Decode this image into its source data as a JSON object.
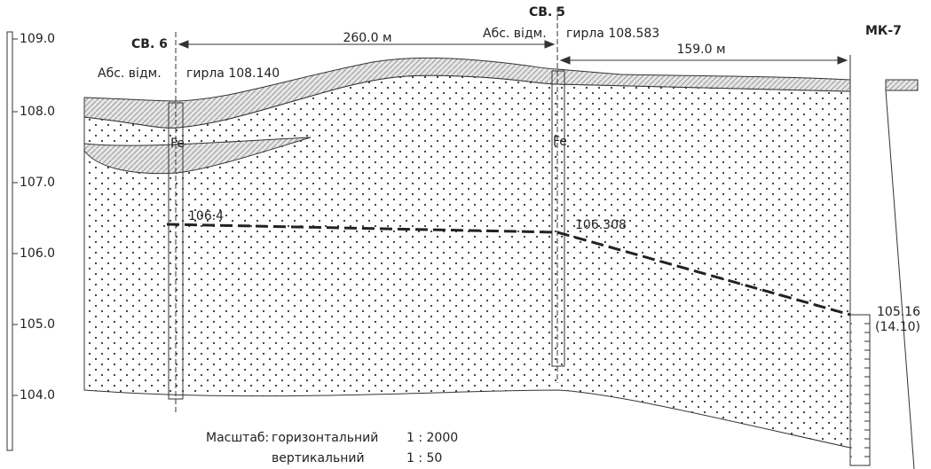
{
  "scale": {
    "ticks": [
      "109.0",
      "108.0",
      "107.0",
      "106.0",
      "105.0",
      "104.0"
    ]
  },
  "boreholes": [
    {
      "name": "СВ. 6",
      "elevation_label": "Абс. відм.",
      "collar": "гирла 108.140",
      "marker": "Fe",
      "water_level": "106.4"
    },
    {
      "name": "СВ. 5",
      "elevation_label": "Абс. відм.",
      "collar": "гирла 108.583",
      "marker": "Fe",
      "water_level": "106.308"
    },
    {
      "name": "МК-7",
      "water_level": "105.16",
      "depth": "(14.10)"
    }
  ],
  "distances": [
    "260.0 м",
    "159.0 м"
  ],
  "legend": {
    "title": "Масштаб:",
    "rows": [
      {
        "label": "горизонтальний",
        "value": "1 : 2000"
      },
      {
        "label": "вертикальний",
        "value": "1 : 50"
      }
    ]
  }
}
